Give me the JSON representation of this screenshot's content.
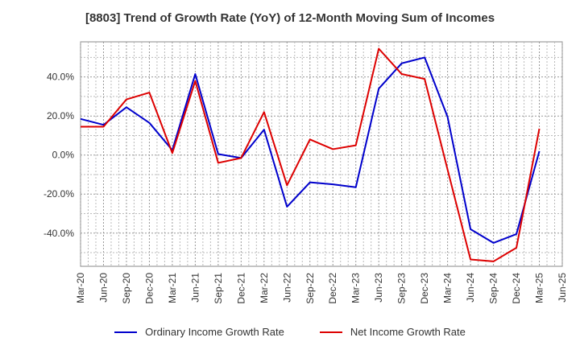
{
  "chart_data": {
    "type": "line",
    "title": "[8803]  Trend of Growth Rate (YoY) of 12-Month Moving Sum of Incomes",
    "xlabel": "",
    "ylabel": "",
    "x": [
      "Mar-20",
      "Jun-20",
      "Sep-20",
      "Dec-20",
      "Mar-21",
      "Jun-21",
      "Sep-21",
      "Dec-21",
      "Mar-22",
      "Jun-22",
      "Sep-22",
      "Dec-22",
      "Mar-23",
      "Jun-23",
      "Sep-23",
      "Dec-23",
      "Mar-24",
      "Jun-24",
      "Sep-24",
      "Dec-24",
      "Mar-25",
      "Jun-25"
    ],
    "y_ticks": [
      -40,
      -20,
      0,
      20,
      40
    ],
    "y_tick_labels": [
      "-40.0%",
      "-20.0%",
      "0.0%",
      "20.0%",
      "40.0%"
    ],
    "ylim": [
      -57,
      58
    ],
    "grid": true,
    "legend_position": "bottom",
    "series": [
      {
        "name": "Ordinary Income Growth Rate",
        "color": "#0000cc",
        "values": [
          18.5,
          15.5,
          24.5,
          16.5,
          2.5,
          41.5,
          0.5,
          -1.5,
          13.0,
          -26.5,
          -14.0,
          -15.0,
          -16.5,
          34.0,
          47.0,
          50.0,
          19.5,
          -38.0,
          -45.0,
          -40.5,
          2.0,
          null
        ]
      },
      {
        "name": "Net Income Growth Rate",
        "color": "#dd0000",
        "values": [
          14.5,
          14.5,
          28.5,
          32.0,
          1.0,
          38.0,
          -4.0,
          -1.5,
          22.0,
          -15.5,
          8.0,
          3.0,
          5.0,
          54.5,
          41.5,
          39.0,
          -7.5,
          -53.5,
          -54.5,
          -47.5,
          13.5,
          null
        ]
      }
    ]
  }
}
